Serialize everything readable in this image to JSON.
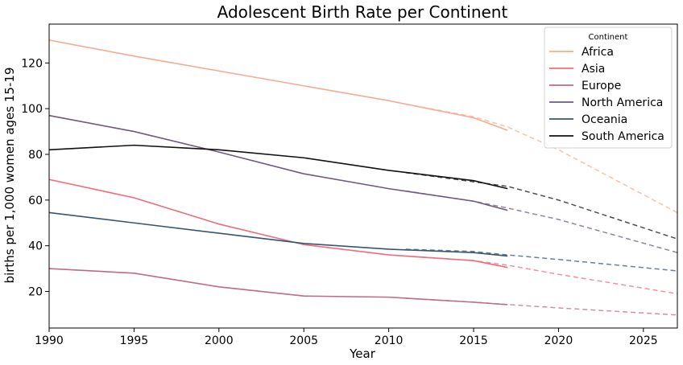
{
  "chart_data": {
    "type": "line",
    "title": "Adolescent Birth Rate per Continent",
    "xlabel": "Year",
    "ylabel": "births per 1,000 women ages 15-19",
    "xlim": [
      1990,
      2027
    ],
    "ylim": [
      4,
      137
    ],
    "x_ticks": [
      1990,
      1995,
      2000,
      2005,
      2010,
      2015,
      2020,
      2025
    ],
    "y_ticks": [
      20,
      40,
      60,
      80,
      100,
      120
    ],
    "grid": false,
    "legend": {
      "title": "Continent",
      "placement": "top-right"
    },
    "series": [
      {
        "name": "Africa",
        "color": "#f5ab91",
        "x": [
          1990,
          1995,
          2000,
          2005,
          2010,
          2015,
          2017
        ],
        "values": [
          130.0,
          123.0,
          116.5,
          110.0,
          103.5,
          96.0,
          90.5
        ],
        "forecast_x": [
          2011,
          2015,
          2017,
          2020,
          2027
        ],
        "forecast_values": [
          102.0,
          96.5,
          92.0,
          82.0,
          54.5
        ]
      },
      {
        "name": "Asia",
        "color": "#f06b7e",
        "x": [
          1990,
          1995,
          2000,
          2005,
          2010,
          2015,
          2017
        ],
        "values": [
          69.0,
          61.0,
          49.5,
          40.5,
          36.0,
          33.5,
          30.5
        ],
        "forecast_x": [
          2011,
          2015,
          2017,
          2020,
          2027
        ],
        "forecast_values": [
          35.5,
          33.5,
          31.5,
          27.5,
          19.0
        ]
      },
      {
        "name": "Europe",
        "color": "#c06a88",
        "x": [
          1990,
          1995,
          2000,
          2005,
          2010,
          2015,
          2017
        ],
        "values": [
          30.0,
          28.0,
          22.0,
          18.0,
          17.5,
          15.3,
          14.2
        ],
        "forecast_x": [
          2011,
          2015,
          2017,
          2020,
          2027
        ],
        "forecast_values": [
          17.0,
          15.3,
          14.3,
          12.8,
          9.7
        ]
      },
      {
        "name": "North America",
        "color": "#6f5a7c",
        "x": [
          1990,
          1995,
          2000,
          2005,
          2010,
          2015,
          2017
        ],
        "values": [
          97.0,
          90.0,
          81.0,
          71.5,
          65.0,
          59.5,
          55.5
        ],
        "forecast_x": [
          2011,
          2015,
          2017,
          2020,
          2027
        ],
        "forecast_values": [
          64.0,
          59.5,
          56.5,
          51.5,
          37.0
        ]
      },
      {
        "name": "Oceania",
        "color": "#36566f",
        "x": [
          1990,
          1995,
          2000,
          2005,
          2010,
          2015,
          2017
        ],
        "values": [
          54.5,
          50.0,
          45.5,
          41.0,
          38.5,
          37.0,
          35.5
        ],
        "forecast_x": [
          2011,
          2015,
          2017,
          2020,
          2027
        ],
        "forecast_values": [
          38.5,
          37.5,
          36.0,
          34.0,
          29.0
        ]
      },
      {
        "name": "South America",
        "color": "#111111",
        "x": [
          1990,
          1995,
          2000,
          2005,
          2010,
          2015,
          2017
        ],
        "values": [
          82.0,
          84.0,
          82.0,
          78.5,
          73.0,
          68.5,
          65.0
        ],
        "forecast_x": [
          2011,
          2015,
          2017,
          2020,
          2027
        ],
        "forecast_values": [
          72.0,
          68.0,
          66.0,
          60.0,
          43.0
        ]
      }
    ]
  }
}
